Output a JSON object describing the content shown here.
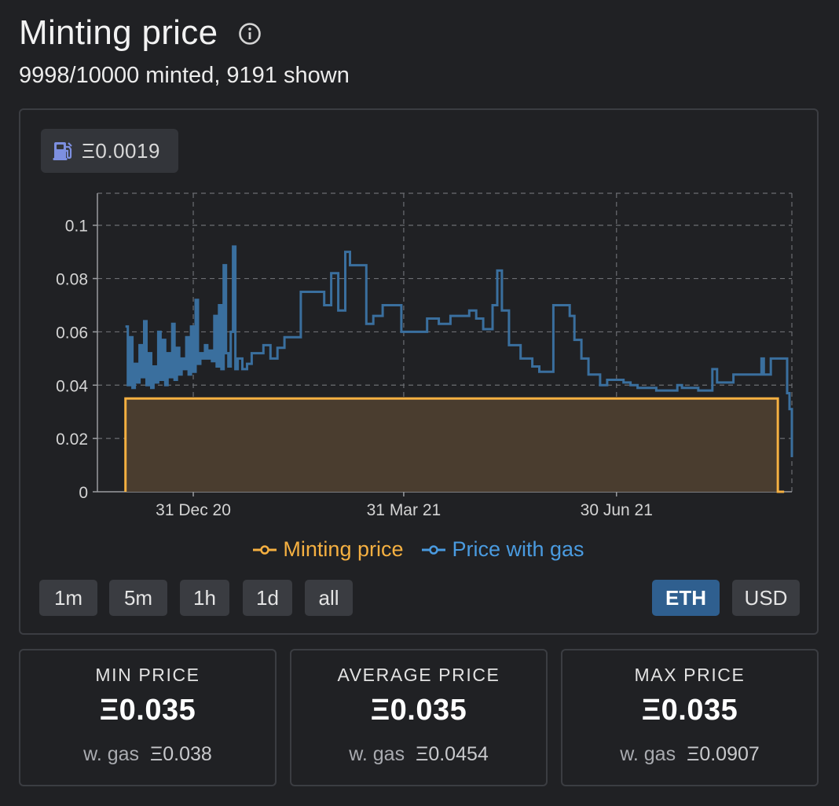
{
  "header": {
    "title": "Minting price",
    "info_icon": "info-icon",
    "subtitle": "9998/10000 minted, 9191 shown"
  },
  "gas_badge": {
    "icon": "gas-pump-icon",
    "value": "Ξ0.0019"
  },
  "colors": {
    "minting": "#f5b041",
    "minting_fill": "#4a3d2f",
    "gas": "#3a6f9e",
    "gas_legend": "#4a9be0",
    "active_button": "#2f5f8f"
  },
  "legend": [
    {
      "label": "Minting price",
      "icon": "line-circle-marker-icon"
    },
    {
      "label": "Price with gas",
      "icon": "line-circle-marker-icon"
    }
  ],
  "range_buttons": [
    "1m",
    "5m",
    "1h",
    "1d",
    "all"
  ],
  "currency_buttons": [
    {
      "label": "ETH",
      "active": true
    },
    {
      "label": "USD",
      "active": false
    }
  ],
  "stats": [
    {
      "label": "MIN PRICE",
      "value": "Ξ0.035",
      "gas_label": "w. gas",
      "gas_value": "Ξ0.038"
    },
    {
      "label": "AVERAGE PRICE",
      "value": "Ξ0.035",
      "gas_label": "w. gas",
      "gas_value": "Ξ0.0454"
    },
    {
      "label": "MAX PRICE",
      "value": "Ξ0.035",
      "gas_label": "w. gas",
      "gas_value": "Ξ0.0907"
    }
  ],
  "chart_data": {
    "type": "line",
    "y_ticks": [
      "0",
      "0.02",
      "0.04",
      "0.06",
      "0.08",
      "0.1"
    ],
    "x_ticks": [
      {
        "label": "31 Dec 20",
        "date": "2020-12-31"
      },
      {
        "label": "31 Mar 21",
        "date": "2021-03-31"
      },
      {
        "label": "30 Jun 21",
        "date": "2021-06-30"
      }
    ],
    "xlim": [
      "2020-11-20",
      "2021-09-13"
    ],
    "ylim": [
      0,
      0.112
    ],
    "grid": true,
    "legend_position": "bottom",
    "series": [
      {
        "name": "Minting price",
        "step": true,
        "filled": true,
        "points": [
          [
            "2020-12-02",
            0.035
          ],
          [
            "2021-09-07",
            0.035
          ],
          [
            "2021-09-07",
            0.0
          ]
        ]
      },
      {
        "name": "Price with gas",
        "step": true,
        "points": [
          [
            "2020-12-02",
            0.062
          ],
          [
            "2020-12-03",
            0.04
          ],
          [
            "2020-12-04",
            0.058
          ],
          [
            "2020-12-05",
            0.039
          ],
          [
            "2020-12-06",
            0.048
          ],
          [
            "2020-12-07",
            0.041
          ],
          [
            "2020-12-08",
            0.055
          ],
          [
            "2020-12-09",
            0.043
          ],
          [
            "2020-12-10",
            0.064
          ],
          [
            "2020-12-11",
            0.04
          ],
          [
            "2020-12-12",
            0.052
          ],
          [
            "2020-12-13",
            0.039
          ],
          [
            "2020-12-14",
            0.047
          ],
          [
            "2020-12-15",
            0.041
          ],
          [
            "2020-12-16",
            0.06
          ],
          [
            "2020-12-17",
            0.042
          ],
          [
            "2020-12-18",
            0.057
          ],
          [
            "2020-12-19",
            0.04
          ],
          [
            "2020-12-20",
            0.052
          ],
          [
            "2020-12-21",
            0.043
          ],
          [
            "2020-12-22",
            0.063
          ],
          [
            "2020-12-23",
            0.042
          ],
          [
            "2020-12-24",
            0.054
          ],
          [
            "2020-12-25",
            0.044
          ],
          [
            "2020-12-26",
            0.05
          ],
          [
            "2020-12-27",
            0.046
          ],
          [
            "2020-12-28",
            0.058
          ],
          [
            "2020-12-29",
            0.044
          ],
          [
            "2020-12-30",
            0.062
          ],
          [
            "2020-12-31",
            0.045
          ],
          [
            "2021-01-01",
            0.072
          ],
          [
            "2021-01-02",
            0.048
          ],
          [
            "2021-01-03",
            0.052
          ],
          [
            "2021-01-04",
            0.05
          ],
          [
            "2021-01-05",
            0.055
          ],
          [
            "2021-01-06",
            0.05
          ],
          [
            "2021-01-07",
            0.053
          ],
          [
            "2021-01-08",
            0.049
          ],
          [
            "2021-01-09",
            0.066
          ],
          [
            "2021-01-10",
            0.047
          ],
          [
            "2021-01-11",
            0.07
          ],
          [
            "2021-01-12",
            0.046
          ],
          [
            "2021-01-13",
            0.085
          ],
          [
            "2021-01-14",
            0.052
          ],
          [
            "2021-01-15",
            0.047
          ],
          [
            "2021-01-16",
            0.06
          ],
          [
            "2021-01-17",
            0.092
          ],
          [
            "2021-01-18",
            0.046
          ],
          [
            "2021-01-19",
            0.05
          ],
          [
            "2021-01-21",
            0.046
          ],
          [
            "2021-01-23",
            0.048
          ],
          [
            "2021-01-25",
            0.052
          ],
          [
            "2021-01-30",
            0.055
          ],
          [
            "2021-02-02",
            0.05
          ],
          [
            "2021-02-05",
            0.054
          ],
          [
            "2021-02-08",
            0.058
          ],
          [
            "2021-02-15",
            0.075
          ],
          [
            "2021-02-22",
            0.075
          ],
          [
            "2021-02-25",
            0.07
          ],
          [
            "2021-02-28",
            0.082
          ],
          [
            "2021-03-03",
            0.068
          ],
          [
            "2021-03-06",
            0.09
          ],
          [
            "2021-03-08",
            0.085
          ],
          [
            "2021-03-15",
            0.063
          ],
          [
            "2021-03-18",
            0.066
          ],
          [
            "2021-03-22",
            0.07
          ],
          [
            "2021-03-30",
            0.06
          ],
          [
            "2021-04-10",
            0.065
          ],
          [
            "2021-04-15",
            0.063
          ],
          [
            "2021-04-20",
            0.066
          ],
          [
            "2021-04-28",
            0.068
          ],
          [
            "2021-05-01",
            0.065
          ],
          [
            "2021-05-04",
            0.061
          ],
          [
            "2021-05-08",
            0.07
          ],
          [
            "2021-05-10",
            0.083
          ],
          [
            "2021-05-12",
            0.068
          ],
          [
            "2021-05-15",
            0.055
          ],
          [
            "2021-05-20",
            0.05
          ],
          [
            "2021-05-25",
            0.047
          ],
          [
            "2021-05-28",
            0.045
          ],
          [
            "2021-06-03",
            0.07
          ],
          [
            "2021-06-10",
            0.066
          ],
          [
            "2021-06-12",
            0.057
          ],
          [
            "2021-06-15",
            0.05
          ],
          [
            "2021-06-18",
            0.044
          ],
          [
            "2021-06-23",
            0.04
          ],
          [
            "2021-06-26",
            0.042
          ],
          [
            "2021-07-03",
            0.041
          ],
          [
            "2021-07-06",
            0.04
          ],
          [
            "2021-07-09",
            0.039
          ],
          [
            "2021-07-17",
            0.038
          ],
          [
            "2021-07-26",
            0.04
          ],
          [
            "2021-07-28",
            0.039
          ],
          [
            "2021-08-04",
            0.038
          ],
          [
            "2021-08-10",
            0.046
          ],
          [
            "2021-08-12",
            0.041
          ],
          [
            "2021-08-19",
            0.044
          ],
          [
            "2021-08-26",
            0.044
          ],
          [
            "2021-08-31",
            0.05
          ],
          [
            "2021-09-01",
            0.044
          ],
          [
            "2021-09-04",
            0.05
          ],
          [
            "2021-09-10",
            0.05
          ],
          [
            "2021-09-11",
            0.037
          ],
          [
            "2021-09-12",
            0.031
          ],
          [
            "2021-09-13",
            0.013
          ]
        ]
      }
    ]
  }
}
